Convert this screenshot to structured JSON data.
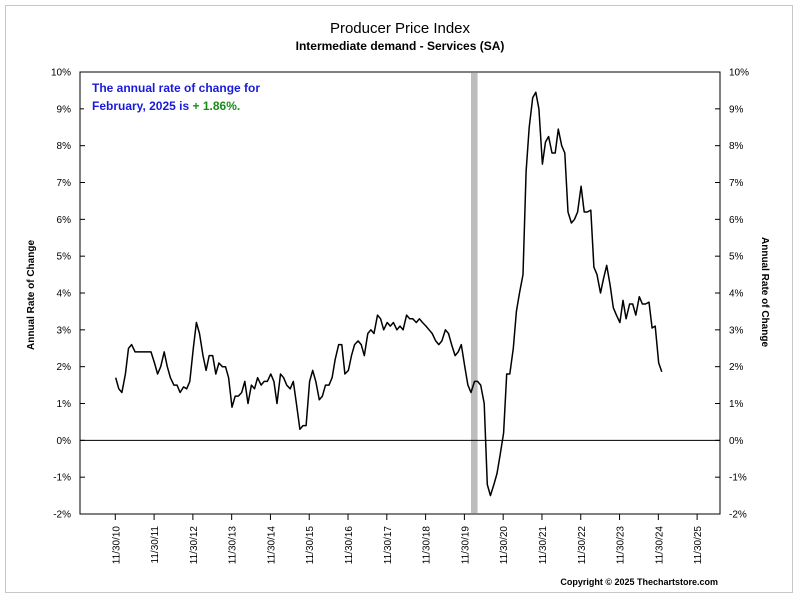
{
  "chart_data": {
    "type": "line",
    "title": "Producer Price Index",
    "subtitle": "Intermediate demand - Services (SA)",
    "ylabel_left": "Annual Rate of Change",
    "ylabel_right": "Annual Rate of Change",
    "ylim": [
      -2,
      10
    ],
    "yticks": [
      "-2%",
      "-1%",
      "0%",
      "1%",
      "2%",
      "3%",
      "4%",
      "5%",
      "6%",
      "7%",
      "8%",
      "9%",
      "10%"
    ],
    "xlim": [
      2010.0,
      2026.5
    ],
    "xticks": [
      "11/30/10",
      "11/30/11",
      "11/30/12",
      "11/30/13",
      "11/30/14",
      "11/30/15",
      "11/30/16",
      "11/30/17",
      "11/30/18",
      "11/30/19",
      "11/30/20",
      "11/30/21",
      "11/30/22",
      "11/30/23",
      "11/30/24",
      "11/30/25"
    ],
    "xtick_values": [
      2010.91,
      2011.91,
      2012.91,
      2013.91,
      2014.91,
      2015.91,
      2016.91,
      2017.91,
      2018.91,
      2019.91,
      2020.91,
      2021.91,
      2022.91,
      2023.91,
      2024.91,
      2025.91
    ],
    "recession": [
      2020.08,
      2020.25
    ],
    "grid": false,
    "zero_line": true,
    "annotation": {
      "line1": "The annual rate of change for",
      "line2_prefix": "February, 2025 is ",
      "line2_value": "+ 1.86%.",
      "color_text": "#1a1adb",
      "color_value": "#1a8c1a"
    },
    "series": [
      {
        "color": "#000000",
        "points": [
          [
            2010.92,
            1.7
          ],
          [
            2011.0,
            1.4
          ],
          [
            2011.08,
            1.3
          ],
          [
            2011.17,
            1.8
          ],
          [
            2011.25,
            2.5
          ],
          [
            2011.33,
            2.6
          ],
          [
            2011.42,
            2.4
          ],
          [
            2011.5,
            2.4
          ],
          [
            2011.58,
            2.4
          ],
          [
            2011.67,
            2.4
          ],
          [
            2011.75,
            2.4
          ],
          [
            2011.83,
            2.4
          ],
          [
            2011.92,
            2.1
          ],
          [
            2012.0,
            1.8
          ],
          [
            2012.08,
            2.0
          ],
          [
            2012.17,
            2.4
          ],
          [
            2012.25,
            2.0
          ],
          [
            2012.33,
            1.7
          ],
          [
            2012.42,
            1.5
          ],
          [
            2012.5,
            1.5
          ],
          [
            2012.58,
            1.3
          ],
          [
            2012.67,
            1.45
          ],
          [
            2012.75,
            1.4
          ],
          [
            2012.83,
            1.6
          ],
          [
            2012.92,
            2.5
          ],
          [
            2013.0,
            3.2
          ],
          [
            2013.08,
            2.9
          ],
          [
            2013.17,
            2.3
          ],
          [
            2013.25,
            1.9
          ],
          [
            2013.33,
            2.3
          ],
          [
            2013.42,
            2.3
          ],
          [
            2013.5,
            1.8
          ],
          [
            2013.58,
            2.1
          ],
          [
            2013.67,
            2.0
          ],
          [
            2013.75,
            2.0
          ],
          [
            2013.83,
            1.7
          ],
          [
            2013.92,
            0.9
          ],
          [
            2014.0,
            1.2
          ],
          [
            2014.08,
            1.2
          ],
          [
            2014.17,
            1.3
          ],
          [
            2014.25,
            1.6
          ],
          [
            2014.33,
            1.0
          ],
          [
            2014.42,
            1.5
          ],
          [
            2014.5,
            1.4
          ],
          [
            2014.58,
            1.7
          ],
          [
            2014.67,
            1.5
          ],
          [
            2014.75,
            1.6
          ],
          [
            2014.83,
            1.6
          ],
          [
            2014.92,
            1.8
          ],
          [
            2015.0,
            1.6
          ],
          [
            2015.08,
            1.0
          ],
          [
            2015.17,
            1.8
          ],
          [
            2015.25,
            1.7
          ],
          [
            2015.33,
            1.5
          ],
          [
            2015.42,
            1.4
          ],
          [
            2015.5,
            1.6
          ],
          [
            2015.58,
            1.0
          ],
          [
            2015.67,
            0.3
          ],
          [
            2015.75,
            0.4
          ],
          [
            2015.83,
            0.4
          ],
          [
            2015.92,
            1.6
          ],
          [
            2016.0,
            1.9
          ],
          [
            2016.08,
            1.6
          ],
          [
            2016.17,
            1.1
          ],
          [
            2016.25,
            1.2
          ],
          [
            2016.33,
            1.5
          ],
          [
            2016.42,
            1.5
          ],
          [
            2016.5,
            1.7
          ],
          [
            2016.58,
            2.2
          ],
          [
            2016.67,
            2.6
          ],
          [
            2016.75,
            2.6
          ],
          [
            2016.83,
            1.8
          ],
          [
            2016.92,
            1.9
          ],
          [
            2017.0,
            2.3
          ],
          [
            2017.08,
            2.6
          ],
          [
            2017.17,
            2.7
          ],
          [
            2017.25,
            2.6
          ],
          [
            2017.33,
            2.3
          ],
          [
            2017.42,
            2.9
          ],
          [
            2017.5,
            3.0
          ],
          [
            2017.58,
            2.9
          ],
          [
            2017.67,
            3.4
          ],
          [
            2017.75,
            3.3
          ],
          [
            2017.83,
            3.0
          ],
          [
            2017.92,
            3.2
          ],
          [
            2018.0,
            3.1
          ],
          [
            2018.08,
            3.2
          ],
          [
            2018.17,
            3.0
          ],
          [
            2018.25,
            3.1
          ],
          [
            2018.33,
            3.0
          ],
          [
            2018.42,
            3.4
          ],
          [
            2018.5,
            3.3
          ],
          [
            2018.58,
            3.3
          ],
          [
            2018.67,
            3.2
          ],
          [
            2018.75,
            3.3
          ],
          [
            2018.83,
            3.2
          ],
          [
            2018.92,
            3.1
          ],
          [
            2019.0,
            3.0
          ],
          [
            2019.08,
            2.9
          ],
          [
            2019.17,
            2.7
          ],
          [
            2019.25,
            2.6
          ],
          [
            2019.33,
            2.7
          ],
          [
            2019.42,
            3.0
          ],
          [
            2019.5,
            2.9
          ],
          [
            2019.58,
            2.6
          ],
          [
            2019.67,
            2.3
          ],
          [
            2019.75,
            2.4
          ],
          [
            2019.83,
            2.6
          ],
          [
            2019.92,
            2.0
          ],
          [
            2020.0,
            1.5
          ],
          [
            2020.08,
            1.3
          ],
          [
            2020.17,
            1.6
          ],
          [
            2020.25,
            1.6
          ],
          [
            2020.33,
            1.5
          ],
          [
            2020.42,
            1.0
          ],
          [
            2020.5,
            -1.2
          ],
          [
            2020.58,
            -1.5
          ],
          [
            2020.67,
            -1.2
          ],
          [
            2020.75,
            -0.9
          ],
          [
            2020.83,
            -0.4
          ],
          [
            2020.92,
            0.2
          ],
          [
            2021.0,
            1.8
          ],
          [
            2021.08,
            1.8
          ],
          [
            2021.17,
            2.5
          ],
          [
            2021.25,
            3.5
          ],
          [
            2021.33,
            4.0
          ],
          [
            2021.42,
            4.5
          ],
          [
            2021.5,
            7.3
          ],
          [
            2021.58,
            8.5
          ],
          [
            2021.67,
            9.3
          ],
          [
            2021.75,
            9.45
          ],
          [
            2021.83,
            9.0
          ],
          [
            2021.92,
            7.5
          ],
          [
            2022.0,
            8.1
          ],
          [
            2022.08,
            8.25
          ],
          [
            2022.17,
            7.8
          ],
          [
            2022.25,
            7.8
          ],
          [
            2022.33,
            8.45
          ],
          [
            2022.42,
            8.0
          ],
          [
            2022.5,
            7.8
          ],
          [
            2022.58,
            6.2
          ],
          [
            2022.67,
            5.9
          ],
          [
            2022.75,
            6.0
          ],
          [
            2022.83,
            6.2
          ],
          [
            2022.92,
            6.9
          ],
          [
            2023.0,
            6.2
          ],
          [
            2023.08,
            6.2
          ],
          [
            2023.17,
            6.25
          ],
          [
            2023.25,
            4.7
          ],
          [
            2023.33,
            4.5
          ],
          [
            2023.42,
            4.0
          ],
          [
            2023.5,
            4.4
          ],
          [
            2023.58,
            4.75
          ],
          [
            2023.67,
            4.2
          ],
          [
            2023.75,
            3.6
          ],
          [
            2023.83,
            3.4
          ],
          [
            2023.92,
            3.2
          ],
          [
            2024.0,
            3.8
          ],
          [
            2024.08,
            3.3
          ],
          [
            2024.17,
            3.7
          ],
          [
            2024.25,
            3.7
          ],
          [
            2024.33,
            3.4
          ],
          [
            2024.42,
            3.9
          ],
          [
            2024.5,
            3.7
          ],
          [
            2024.58,
            3.7
          ],
          [
            2024.67,
            3.75
          ],
          [
            2024.75,
            3.05
          ],
          [
            2024.83,
            3.1
          ],
          [
            2024.92,
            2.1
          ],
          [
            2025.0,
            1.86
          ]
        ]
      }
    ]
  },
  "copyright": "Copyright © 2025 Thechartstore.com"
}
